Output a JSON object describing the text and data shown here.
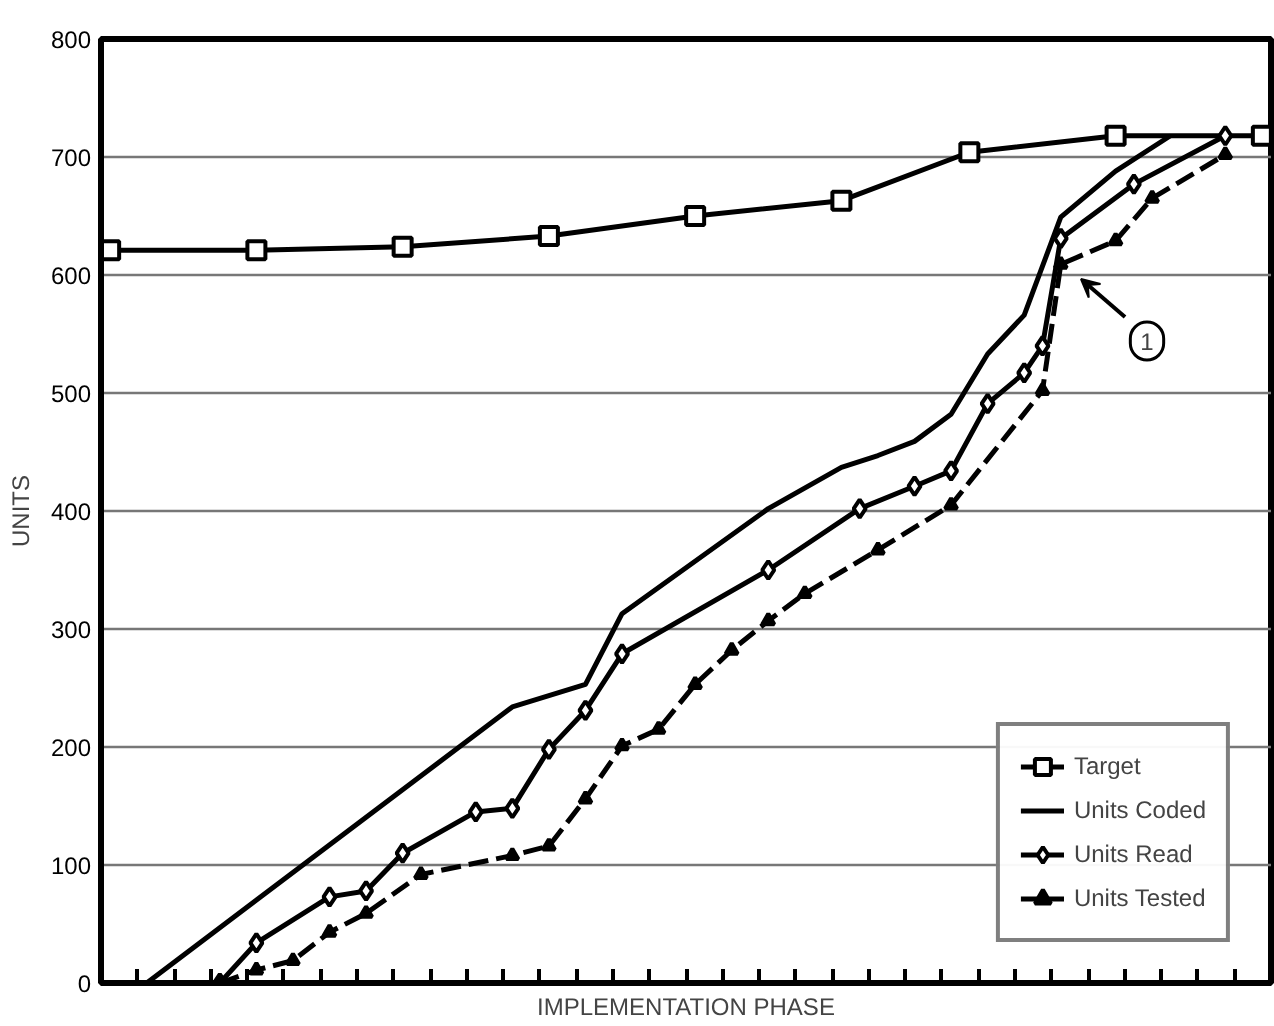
{
  "chart_data": {
    "type": "line",
    "xlabel": "IMPLEMENTATION PHASE",
    "ylabel": "UNITS",
    "categories": [
      null,
      null,
      null,
      null,
      null,
      null,
      null,
      null,
      null,
      null,
      null,
      null,
      null,
      null,
      null,
      null,
      null,
      null,
      null,
      null,
      null,
      null,
      null,
      null,
      null,
      null,
      null,
      null,
      null,
      null,
      null,
      null,
      null,
      null,
      null,
      null,
      null,
      null,
      null,
      null,
      null,
      null,
      null,
      null,
      null,
      null,
      null,
      null,
      null,
      null,
      null,
      null,
      null,
      null,
      null,
      null,
      null,
      null,
      null,
      null,
      null,
      null,
      null,
      null
    ],
    "ylim": [
      0,
      800
    ],
    "yticks": [
      0,
      100,
      200,
      300,
      400,
      500,
      600,
      700,
      800
    ],
    "grid": "y",
    "legend": "bottom right",
    "series": [
      {
        "name": "Target",
        "color": "#000000",
        "marker": "square",
        "line_style": "solid",
        "values": [
          621,
          null,
          null,
          null,
          null,
          null,
          null,
          null,
          621,
          null,
          null,
          null,
          null,
          null,
          null,
          null,
          624,
          null,
          null,
          null,
          null,
          null,
          null,
          null,
          633,
          null,
          null,
          null,
          null,
          null,
          null,
          null,
          650,
          null,
          null,
          null,
          null,
          null,
          null,
          null,
          663,
          null,
          null,
          null,
          null,
          null,
          null,
          704,
          null,
          null,
          null,
          null,
          null,
          null,
          null,
          718,
          null,
          null,
          null,
          null,
          null,
          null,
          null,
          718
        ]
      },
      {
        "name": "Units Coded",
        "color": "#000000",
        "marker": "none",
        "line_style": "solid",
        "values": [
          null,
          null,
          0,
          null,
          null,
          null,
          null,
          null,
          null,
          null,
          null,
          null,
          null,
          null,
          null,
          null,
          null,
          null,
          null,
          null,
          null,
          null,
          234,
          null,
          null,
          null,
          253,
          null,
          313,
          null,
          null,
          null,
          null,
          null,
          null,
          null,
          402,
          null,
          null,
          null,
          437,
          null,
          447,
          null,
          459,
          null,
          482,
          null,
          533,
          null,
          566,
          null,
          649,
          null,
          null,
          688,
          null,
          null,
          718,
          null,
          null,
          null,
          null,
          null
        ]
      },
      {
        "name": "Units Read",
        "color": "#000000",
        "marker": "diamond",
        "line_style": "solid",
        "values": [
          null,
          null,
          null,
          null,
          null,
          null,
          0,
          null,
          34,
          null,
          null,
          null,
          73,
          null,
          78,
          null,
          110,
          null,
          null,
          null,
          145,
          null,
          148,
          null,
          198,
          null,
          231,
          null,
          279,
          null,
          null,
          null,
          null,
          null,
          null,
          null,
          350,
          null,
          null,
          null,
          null,
          402,
          null,
          null,
          421,
          null,
          434,
          null,
          491,
          null,
          517,
          540,
          631,
          null,
          null,
          null,
          677,
          null,
          null,
          null,
          null,
          718,
          null,
          null
        ]
      },
      {
        "name": "Units Tested",
        "color": "#000000",
        "marker": "triangle",
        "line_style": "dashed",
        "values": [
          null,
          null,
          null,
          null,
          null,
          null,
          0,
          null,
          11,
          null,
          19,
          null,
          43,
          null,
          59,
          null,
          null,
          92,
          null,
          null,
          null,
          null,
          108,
          null,
          116,
          null,
          156,
          null,
          201,
          null,
          215,
          null,
          253,
          null,
          282,
          null,
          307,
          null,
          330,
          null,
          null,
          null,
          367,
          null,
          null,
          null,
          405,
          null,
          null,
          null,
          null,
          502,
          609,
          null,
          null,
          629,
          null,
          665,
          null,
          null,
          null,
          702,
          null,
          null
        ]
      }
    ],
    "annotations": [
      "1"
    ]
  }
}
